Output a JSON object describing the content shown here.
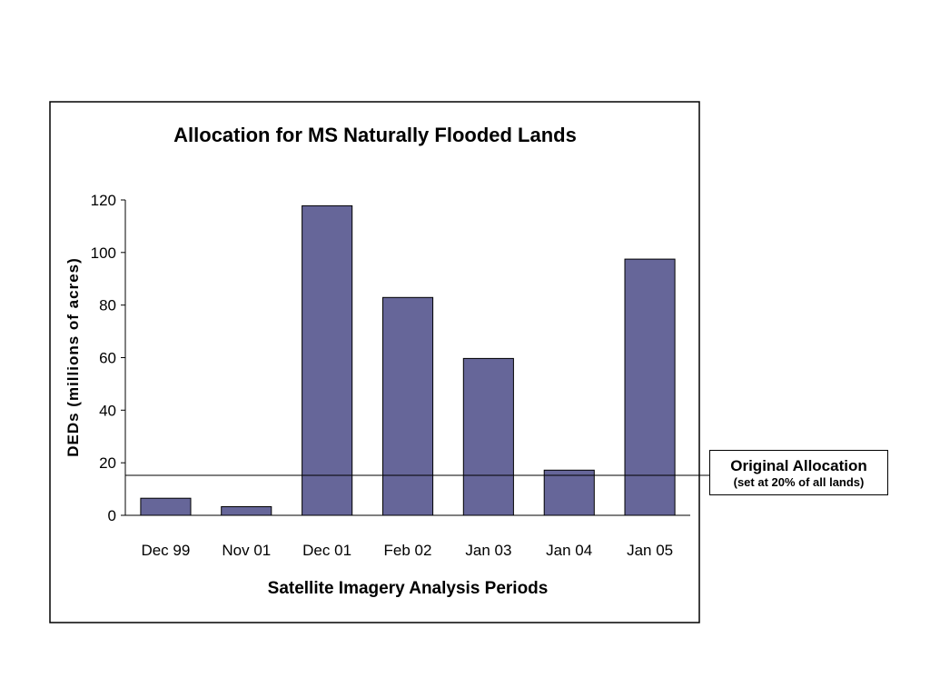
{
  "chart_data": {
    "type": "bar",
    "title": "Allocation for MS Naturally Flooded Lands",
    "xlabel": "Satellite Imagery Analysis Periods",
    "ylabel": "DEDs (millions of acres)",
    "categories": [
      "Dec 99",
      "Nov 01",
      "Dec 01",
      "Feb 02",
      "Jan 03",
      "Jan 04",
      "Jan 05"
    ],
    "values": [
      6.5,
      3.3,
      117.8,
      82.9,
      59.7,
      17.2,
      97.5
    ],
    "ylim": [
      0,
      120
    ],
    "yticks": [
      "0",
      "20",
      "40",
      "60",
      "80",
      "100",
      "120"
    ],
    "bar_color": "#666699",
    "grid": false,
    "reference_line": {
      "value": 15.2,
      "label": "Original Allocation",
      "sublabel": "(set at 20% of all lands)"
    }
  }
}
